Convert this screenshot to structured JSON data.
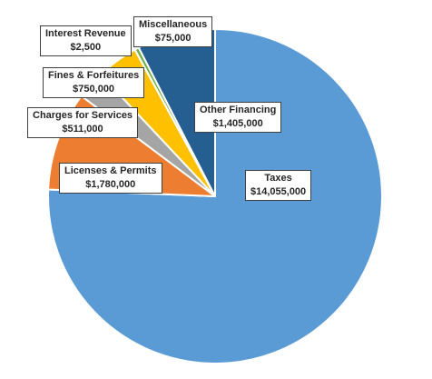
{
  "chart_data": {
    "type": "pie",
    "title": "",
    "start_angle_deg": 0,
    "direction": "clockwise",
    "slices": [
      {
        "key": "taxes",
        "label": "Taxes",
        "value_label": "$14,055,000",
        "value": 14055000,
        "color": "#5B9BD5"
      },
      {
        "key": "licenses",
        "label": "Licenses & Permits",
        "value_label": "$1,780,000",
        "value": 1780000,
        "color": "#ED7D31"
      },
      {
        "key": "charges",
        "label": "Charges for Services",
        "value_label": "$511,000",
        "value": 511000,
        "color": "#A5A5A5"
      },
      {
        "key": "fines",
        "label": "Fines & Forfeitures",
        "value_label": "$750,000",
        "value": 750000,
        "color": "#FFC000"
      },
      {
        "key": "interest",
        "label": "Interest Revenue",
        "value_label": "$2,500",
        "value": 2500,
        "color": "#4472C4"
      },
      {
        "key": "misc",
        "label": "Miscellaneous",
        "value_label": "$75,000",
        "value": 75000,
        "color": "#70AD47"
      },
      {
        "key": "other",
        "label": "Other Financing",
        "value_label": "$1,405,000",
        "value": 1405000,
        "color": "#255E91"
      }
    ]
  }
}
